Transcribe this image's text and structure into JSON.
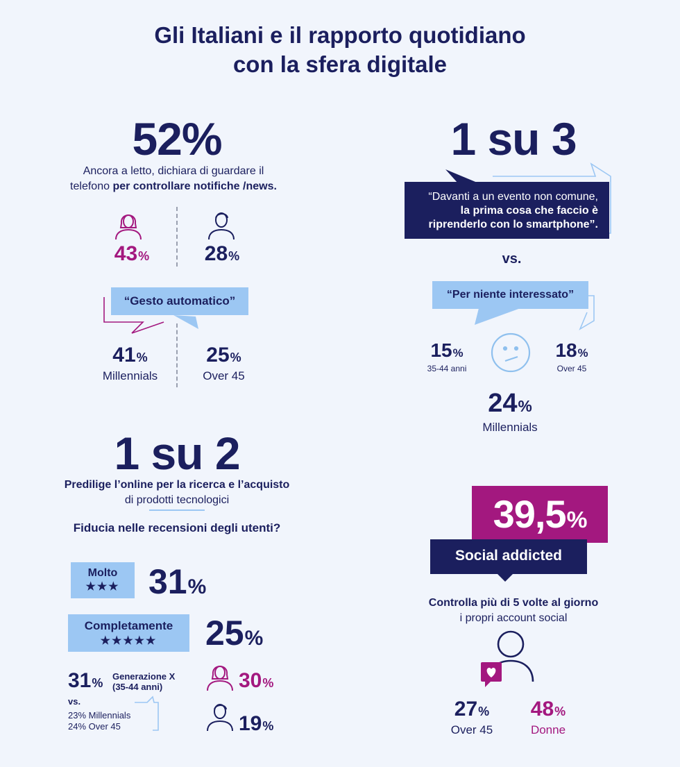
{
  "title_line1": "Gli Italiani e il rapporto quotidiano",
  "title_line2": "con la sfera digitale",
  "s1": {
    "big": "52%",
    "desc_line1": "Ancora a letto, dichiara di guardare il",
    "desc_plain": "telefono ",
    "desc_bold": "per controllare notifiche /news.",
    "women_num": "43",
    "women_sym": "%",
    "men_num": "28",
    "men_sym": "%",
    "bubble": "“Gesto automatico”",
    "mill_num": "41",
    "mill_sym": "%",
    "mill_label": "Millennials",
    "over_num": "25",
    "over_sym": "%",
    "over_label": "Over 45"
  },
  "s2": {
    "big": "1 su 3",
    "quote_l1": "“Davanti a un evento non comune,",
    "quote_l2": "la prima cosa che faccio è",
    "quote_l3": "riprenderlo con lo smartphone”.",
    "vs": "vs.",
    "bubble": "“Per niente interessato”",
    "a_num": "15",
    "a_sym": "%",
    "a_label": "35-44 anni",
    "b_num": "18",
    "b_sym": "%",
    "b_label": "Over 45",
    "c_num": "24",
    "c_sym": "%",
    "c_label": "Millennials"
  },
  "s3": {
    "big": "1 su 2",
    "desc_l1": "Predilige l’online per la ricerca e l’acquisto",
    "desc_l2": "di prodotti tecnologici",
    "question": "Fiducia nelle recensioni degli utenti?",
    "molto_label": "Molto",
    "molto_stars": "★★★",
    "molto_num": "31",
    "molto_sym": "%",
    "comp_label": "Completamente",
    "comp_stars": "★★★★★",
    "comp_num": "25",
    "comp_sym": "%",
    "genx_num": "31",
    "genx_sym": "%",
    "genx_l1": "Generazione X",
    "genx_l2": "(35-44 anni)",
    "vs": "vs.",
    "mill": "23% Millennials",
    "over": "24% Over 45",
    "women_num": "30",
    "women_sym": "%",
    "men_num": "19",
    "men_sym": "%"
  },
  "s4": {
    "big_num": "39,5",
    "big_sym": "%",
    "label": "Social addicted",
    "desc_l1": "Controlla più di 5 volte al giorno",
    "desc_l2": "i propri account social",
    "over_num": "27",
    "over_sym": "%",
    "over_label": "Over 45",
    "donne_num": "48",
    "donne_sym": "%",
    "donne_label": "Donne"
  },
  "colors": {
    "navy": "#1b1f5e",
    "magenta": "#a3187f",
    "lightblue": "#9cc7f3",
    "background": "#f1f5fc"
  },
  "icons": [
    "woman-icon",
    "man-icon",
    "neutral-face-icon",
    "person-icon",
    "heart-icon"
  ]
}
